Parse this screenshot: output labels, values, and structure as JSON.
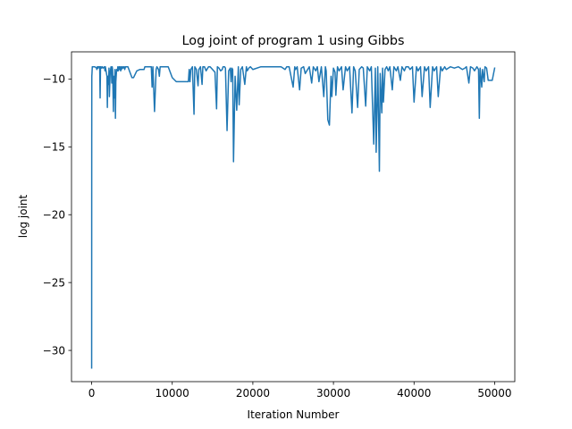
{
  "chart_data": {
    "type": "line",
    "title": "Log joint of program 1 using Gibbs",
    "xlabel": "Iteration Number",
    "ylabel": "log joint",
    "xlim": [
      -2500,
      52500
    ],
    "ylim": [
      -32.3,
      -8.0
    ],
    "xticks": [
      {
        "value": 0,
        "label": "0"
      },
      {
        "value": 10000,
        "label": "10000"
      },
      {
        "value": 20000,
        "label": "20000"
      },
      {
        "value": 30000,
        "label": "30000"
      },
      {
        "value": 40000,
        "label": "40000"
      },
      {
        "value": 50000,
        "label": "50000"
      }
    ],
    "yticks": [
      {
        "value": -10,
        "label": "−10"
      },
      {
        "value": -15,
        "label": "−15"
      },
      {
        "value": -20,
        "label": "−20"
      },
      {
        "value": -25,
        "label": "−25"
      },
      {
        "value": -30,
        "label": "−30"
      }
    ],
    "grid": false,
    "series": [
      {
        "name": "log joint",
        "color": "#1f77b4",
        "x": [
          0,
          10,
          20,
          40,
          80,
          150,
          250,
          400,
          600,
          650,
          700,
          760,
          800,
          850,
          950,
          1000,
          1050,
          1100,
          1150,
          1200,
          1300,
          1320,
          1400,
          1600,
          1650,
          1700,
          1900,
          1950,
          2000,
          2100,
          2150,
          2200,
          2300,
          2400,
          2450,
          2500,
          2550,
          2600,
          2700,
          2750,
          2800,
          2900,
          2950,
          3000,
          3100,
          3200,
          3250,
          3300,
          3400,
          3450,
          3500,
          3600,
          3650,
          3700,
          3800,
          3850,
          3900,
          4000,
          4050,
          4100,
          4200,
          4300,
          4350,
          4400,
          4500,
          5000,
          5100,
          5200,
          5600,
          6000,
          6300,
          6500,
          6600,
          7000,
          7400,
          7500,
          7600,
          7800,
          8000,
          8100,
          8300,
          8400,
          8500,
          8900,
          9000,
          9500,
          10000,
          10500,
          11000,
          11500,
          11800,
          12000,
          12100,
          12200,
          12300,
          12500,
          12700,
          12800,
          13000,
          13200,
          13300,
          13500,
          13700,
          13800,
          14000,
          14200,
          14500,
          14700,
          15000,
          15300,
          15500,
          15600,
          15800,
          16000,
          16200,
          16300,
          16500,
          16600,
          16800,
          17000,
          17200,
          17300,
          17400,
          17500,
          17600,
          17800,
          18000,
          18200,
          18300,
          18500,
          18700,
          19000,
          19200,
          19300,
          19500,
          19700,
          20000,
          21000,
          22000,
          22500,
          23000,
          23200,
          23500,
          24000,
          24200,
          24500,
          25000,
          25200,
          25300,
          25500,
          25800,
          26000,
          26300,
          26500,
          27000,
          27300,
          27500,
          27800,
          28000,
          28200,
          28500,
          28800,
          29000,
          29100,
          29300,
          29500,
          29700,
          29800,
          30000,
          30200,
          30300,
          30500,
          30700,
          31000,
          31200,
          31500,
          31700,
          32000,
          32300,
          32500,
          32700,
          33000,
          33200,
          33500,
          33700,
          34000,
          34200,
          34500,
          34700,
          35000,
          35200,
          35300,
          35500,
          35700,
          35800,
          36000,
          36100,
          36200,
          36400,
          36600,
          36800,
          37000,
          37300,
          37500,
          37800,
          38000,
          38300,
          38500,
          38800,
          39000,
          39300,
          39500,
          39800,
          40000,
          40300,
          40500,
          40800,
          41000,
          41300,
          41500,
          41800,
          42000,
          42300,
          42500,
          42800,
          43000,
          43300,
          43500,
          43800,
          44000,
          44500,
          45000,
          45500,
          46000,
          46300,
          46500,
          46800,
          47000,
          47300,
          47500,
          47800,
          48000,
          48100,
          48200,
          48400,
          48500,
          48700,
          48800,
          49000,
          49200,
          49400,
          49500,
          49700,
          50000
        ],
        "y": [
          -31.3,
          -14.5,
          -9.8,
          -9.6,
          -9.1,
          -9.1,
          -9.1,
          -9.1,
          -9.2,
          -9.3,
          -9.1,
          -9.1,
          -9.2,
          -9.1,
          -9.1,
          -9.1,
          -11.4,
          -9.1,
          -9.1,
          -9.2,
          -9.1,
          -9.1,
          -9.2,
          -9.1,
          -9.4,
          -9.1,
          -9.8,
          -12.1,
          -9.8,
          -10.4,
          -9.2,
          -11.3,
          -9.5,
          -9.1,
          -9.4,
          -10.3,
          -9.1,
          -9.3,
          -12.4,
          -9.8,
          -11.4,
          -9.3,
          -12.9,
          -10.2,
          -9.3,
          -9.4,
          -9.1,
          -9.4,
          -9.1,
          -9.3,
          -9.1,
          -9.4,
          -9.1,
          -9.3,
          -9.1,
          -9.1,
          -9.2,
          -9.1,
          -9.1,
          -9.3,
          -9.1,
          -9.1,
          -9.1,
          -9.1,
          -9.1,
          -9.9,
          -9.9,
          -9.9,
          -9.4,
          -9.3,
          -9.3,
          -9.3,
          -9.1,
          -9.1,
          -9.1,
          -10.6,
          -9.1,
          -12.4,
          -9.3,
          -9.1,
          -9.3,
          -9.8,
          -9.1,
          -9.1,
          -9.1,
          -9.1,
          -9.9,
          -10.2,
          -10.2,
          -10.2,
          -10.2,
          -10.2,
          -9.3,
          -10.2,
          -9.3,
          -9.1,
          -12.6,
          -9.1,
          -9.3,
          -10.5,
          -9.3,
          -9.1,
          -10.4,
          -9.1,
          -9.1,
          -9.4,
          -9.1,
          -9.1,
          -9.3,
          -9.5,
          -12.2,
          -9.1,
          -9.2,
          -9.4,
          -9.3,
          -9.1,
          -9.1,
          -9.2,
          -13.8,
          -9.4,
          -9.2,
          -10.2,
          -9.2,
          -9.3,
          -16.1,
          -9.8,
          -12.3,
          -9.1,
          -11.9,
          -9.3,
          -9.1,
          -10.4,
          -9.1,
          -9.4,
          -9.2,
          -9.1,
          -9.3,
          -9.1,
          -9.1,
          -9.1,
          -9.1,
          -9.1,
          -9.1,
          -9.3,
          -9.1,
          -9.1,
          -10.6,
          -9.1,
          -9.3,
          -9.1,
          -10.8,
          -9.2,
          -9.1,
          -9.6,
          -9.1,
          -10.3,
          -9.1,
          -9.4,
          -9.1,
          -10.2,
          -9.1,
          -11.3,
          -9.1,
          -9.4,
          -13.0,
          -13.4,
          -9.8,
          -11.3,
          -9.2,
          -9.5,
          -11.2,
          -9.1,
          -9.4,
          -9.1,
          -10.8,
          -9.1,
          -9.4,
          -9.1,
          -12.5,
          -9.1,
          -9.4,
          -12.1,
          -9.3,
          -9.1,
          -9.2,
          -12.0,
          -9.1,
          -9.4,
          -9.1,
          -14.8,
          -9.2,
          -15.4,
          -9.1,
          -16.8,
          -9.6,
          -12.5,
          -9.2,
          -11.7,
          -9.3,
          -9.1,
          -9.4,
          -9.1,
          -10.8,
          -9.1,
          -9.4,
          -9.1,
          -10.1,
          -9.1,
          -9.4,
          -9.1,
          -9.1,
          -9.3,
          -9.1,
          -11.7,
          -9.1,
          -9.4,
          -9.1,
          -11.3,
          -9.1,
          -9.4,
          -9.1,
          -12.1,
          -9.1,
          -9.4,
          -9.1,
          -11.3,
          -9.1,
          -9.4,
          -9.1,
          -9.3,
          -9.1,
          -9.2,
          -9.1,
          -9.3,
          -9.2,
          -9.1,
          -10.3,
          -9.1,
          -9.2,
          -9.4,
          -9.1,
          -9.3,
          -12.9,
          -9.2,
          -10.6,
          -9.3,
          -10.2,
          -9.1,
          -9.2,
          -10.1,
          -10.1,
          -10.1,
          -10.1,
          -9.2
        ]
      }
    ]
  }
}
